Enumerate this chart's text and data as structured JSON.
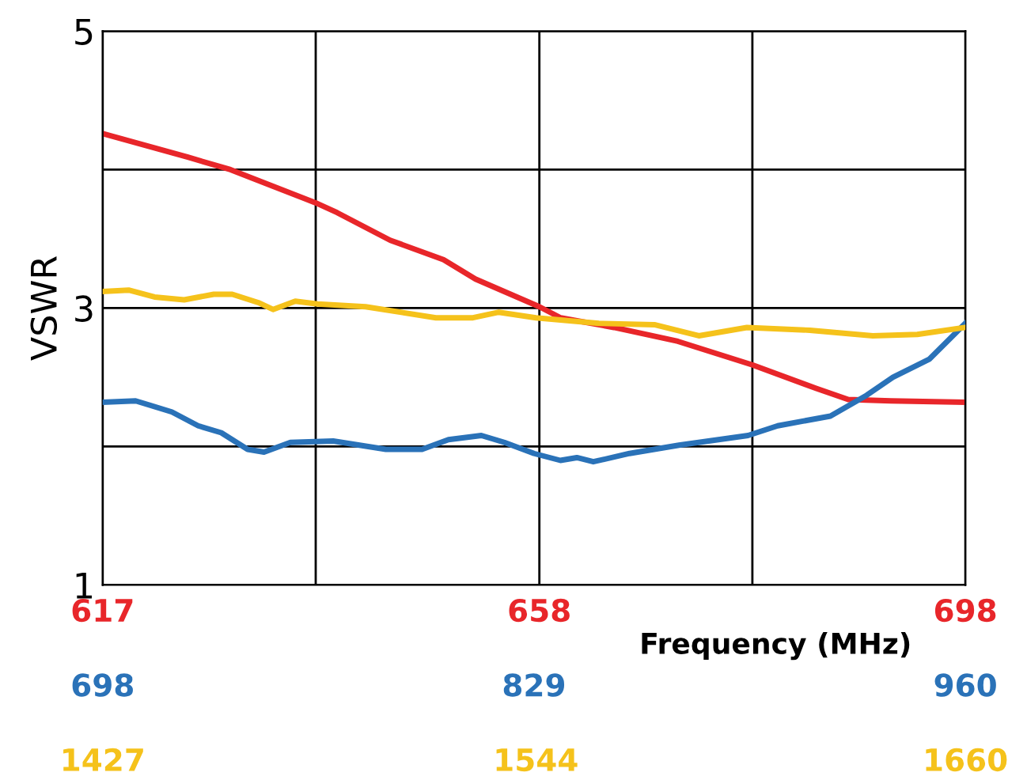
{
  "chart_data": [
    {
      "type": "line",
      "ylabel": "VSWR",
      "xlabel": "Frequency (MHz)",
      "ylim": [
        1,
        5
      ],
      "yticks": [
        1,
        {
          "value": 2,
          "label": null
        },
        3,
        {
          "value": 4,
          "label": null
        },
        5
      ],
      "xlim": [
        617,
        698
      ],
      "xticks": [
        617,
        {
          "value": 637,
          "label": null
        },
        658,
        {
          "value": 678,
          "label": null
        },
        698
      ],
      "x2lim": [
        698,
        960
      ],
      "x2ticks": [
        698,
        829,
        960
      ],
      "grid": true,
      "marker": "none",
      "line_style": "solid",
      "series": [
        {
          "color": "#e8262a",
          "x": [
            617,
            625,
            629,
            633,
            637,
            639,
            644,
            649,
            652,
            658,
            660,
            665,
            671,
            678,
            684,
            687,
            691,
            698
          ],
          "values": [
            4.26,
            4.09,
            4.0,
            3.88,
            3.76,
            3.69,
            3.49,
            3.35,
            3.21,
            3.01,
            2.93,
            2.86,
            2.76,
            2.59,
            2.42,
            2.34,
            2.33,
            2.32
          ]
        },
        {
          "color": "#2a72b8",
          "axis": "x2",
          "x": [
            698,
            708,
            719,
            727,
            734,
            742,
            747,
            755,
            768,
            784,
            795,
            803,
            813,
            820,
            829,
            837,
            842,
            847,
            858,
            873,
            894,
            903,
            919,
            930,
            938,
            949,
            960
          ],
          "values": [
            2.32,
            2.33,
            2.25,
            2.15,
            2.1,
            1.98,
            1.96,
            2.03,
            2.04,
            1.98,
            1.98,
            2.05,
            2.08,
            2.03,
            1.95,
            1.9,
            1.92,
            1.89,
            1.95,
            2.01,
            2.08,
            2.15,
            2.22,
            2.37,
            2.5,
            2.63,
            2.89
          ]
        }
      ]
    },
    {
      "type": "line",
      "ylim": [
        1,
        5
      ],
      "xlim": [
        1427,
        1660
      ],
      "xticks": [
        1427,
        1544,
        1660
      ],
      "tick_labels": "x",
      "marker": "none",
      "line_style": "solid",
      "series": [
        {
          "color": "#f5c21b",
          "x": [
            1427,
            1434,
            1441,
            1449,
            1457,
            1462,
            1469,
            1473,
            1479,
            1485,
            1498,
            1517,
            1527,
            1534,
            1544,
            1561,
            1576,
            1588,
            1601,
            1618,
            1635,
            1647,
            1660
          ],
          "values": [
            3.12,
            3.13,
            3.08,
            3.06,
            3.1,
            3.1,
            3.04,
            2.99,
            3.05,
            3.03,
            3.01,
            2.93,
            2.93,
            2.97,
            2.93,
            2.89,
            2.88,
            2.8,
            2.86,
            2.84,
            2.8,
            2.81,
            2.86
          ]
        }
      ]
    }
  ]
}
